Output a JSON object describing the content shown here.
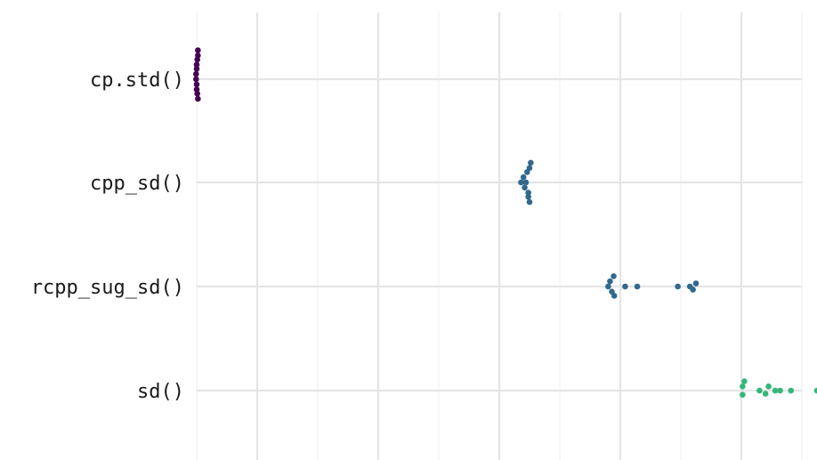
{
  "chart_data": {
    "type": "scatter",
    "subtype": "beeswarm",
    "title": "",
    "xlabel": "",
    "ylabel": "",
    "grid": true,
    "legend": "none",
    "x_tick_labels_shown": false,
    "xlim": [
      0,
      100
    ],
    "x_major_ticks": [
      10,
      30,
      50,
      70,
      90
    ],
    "x_minor_ticks": [
      0,
      20,
      40,
      60,
      80,
      100
    ],
    "categories": [
      "cp.std()",
      "cpp_sd()",
      "rcpp_sug_sd()",
      "sd()"
    ],
    "series": [
      {
        "color": "#440154",
        "values": [
          {
            "x": 0.2,
            "y": -0.28
          },
          {
            "x": 0.2,
            "y": -0.23
          },
          {
            "x": 0.1,
            "y": -0.19
          },
          {
            "x": 0.0,
            "y": -0.14
          },
          {
            "x": 0.0,
            "y": -0.1
          },
          {
            "x": -0.1,
            "y": -0.05
          },
          {
            "x": -0.1,
            "y": 0.0
          },
          {
            "x": 0.0,
            "y": 0.05
          },
          {
            "x": 0.0,
            "y": 0.1
          },
          {
            "x": 0.1,
            "y": 0.14
          },
          {
            "x": 0.2,
            "y": 0.19
          }
        ]
      },
      {
        "color": "#31688e",
        "values": [
          {
            "x": 55.2,
            "y": -0.19
          },
          {
            "x": 55.0,
            "y": -0.14
          },
          {
            "x": 54.6,
            "y": -0.1
          },
          {
            "x": 54.0,
            "y": -0.05
          },
          {
            "x": 53.6,
            "y": 0.0
          },
          {
            "x": 54.4,
            "y": 0.0
          },
          {
            "x": 54.2,
            "y": 0.05
          },
          {
            "x": 54.8,
            "y": 0.1
          },
          {
            "x": 54.8,
            "y": 0.14
          },
          {
            "x": 55.0,
            "y": 0.19
          }
        ]
      },
      {
        "color": "#31688e",
        "values": [
          {
            "x": 68.9,
            "y": -0.1
          },
          {
            "x": 68.3,
            "y": -0.05
          },
          {
            "x": 68.0,
            "y": 0.0
          },
          {
            "x": 68.6,
            "y": 0.05
          },
          {
            "x": 69.0,
            "y": 0.09
          },
          {
            "x": 70.8,
            "y": 0.0
          },
          {
            "x": 72.8,
            "y": 0.0
          },
          {
            "x": 79.5,
            "y": 0.0
          },
          {
            "x": 81.5,
            "y": 0.0
          },
          {
            "x": 82.5,
            "y": -0.03
          },
          {
            "x": 82.0,
            "y": 0.03
          }
        ]
      },
      {
        "color": "#35b779",
        "values": [
          {
            "x": 90.5,
            "y": -0.09
          },
          {
            "x": 90.2,
            "y": -0.04
          },
          {
            "x": 90.2,
            "y": 0.04
          },
          {
            "x": 93.0,
            "y": 0.0
          },
          {
            "x": 94.5,
            "y": -0.04
          },
          {
            "x": 95.6,
            "y": 0.0
          },
          {
            "x": 94.0,
            "y": 0.03
          },
          {
            "x": 96.4,
            "y": 0.0
          },
          {
            "x": 98.2,
            "y": 0.0
          },
          {
            "x": 102.5,
            "y": 0.0
          }
        ]
      }
    ]
  }
}
